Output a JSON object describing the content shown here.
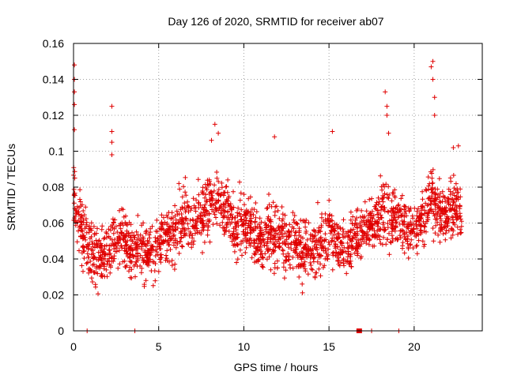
{
  "chart_data": {
    "type": "scatter",
    "title": "Day 126 of 2020, SRMTID for receiver ab07",
    "xlabel": "GPS time / hours",
    "ylabel": "SRMTID / TECUs",
    "xlim": [
      0,
      24
    ],
    "ylim": [
      0,
      0.16
    ],
    "xticks": [
      0,
      5,
      10,
      15,
      20
    ],
    "xtick_labels": [
      "0",
      "5",
      "10",
      "15",
      "20"
    ],
    "yticks": [
      0,
      0.02,
      0.04,
      0.06,
      0.08,
      0.1,
      0.12,
      0.14,
      0.16
    ],
    "ytick_labels": [
      "0",
      "0.02",
      "0.04",
      "0.06",
      "0.08",
      "0.1",
      "0.12",
      "0.14",
      "0.16"
    ],
    "grid": true,
    "marker": "plus",
    "color": "#e00000",
    "series": [
      {
        "name": "SRMTID",
        "trend": [
          [
            0.0,
            0.075
          ],
          [
            0.5,
            0.055
          ],
          [
            1.0,
            0.045
          ],
          [
            1.5,
            0.04
          ],
          [
            2.0,
            0.045
          ],
          [
            2.5,
            0.05
          ],
          [
            3.0,
            0.05
          ],
          [
            3.5,
            0.045
          ],
          [
            4.0,
            0.045
          ],
          [
            4.5,
            0.045
          ],
          [
            5.0,
            0.05
          ],
          [
            5.5,
            0.055
          ],
          [
            6.0,
            0.055
          ],
          [
            6.5,
            0.06
          ],
          [
            7.0,
            0.06
          ],
          [
            7.5,
            0.065
          ],
          [
            8.0,
            0.07
          ],
          [
            8.5,
            0.075
          ],
          [
            9.0,
            0.065
          ],
          [
            9.5,
            0.055
          ],
          [
            10.0,
            0.06
          ],
          [
            10.5,
            0.055
          ],
          [
            11.0,
            0.05
          ],
          [
            11.5,
            0.055
          ],
          [
            12.0,
            0.05
          ],
          [
            12.5,
            0.05
          ],
          [
            13.0,
            0.05
          ],
          [
            13.5,
            0.045
          ],
          [
            14.0,
            0.045
          ],
          [
            14.5,
            0.05
          ],
          [
            15.0,
            0.055
          ],
          [
            15.5,
            0.05
          ],
          [
            16.0,
            0.045
          ],
          [
            16.5,
            0.05
          ],
          [
            17.0,
            0.055
          ],
          [
            17.5,
            0.06
          ],
          [
            18.0,
            0.065
          ],
          [
            18.5,
            0.065
          ],
          [
            19.0,
            0.06
          ],
          [
            19.5,
            0.06
          ],
          [
            20.0,
            0.055
          ],
          [
            20.5,
            0.065
          ],
          [
            21.0,
            0.075
          ],
          [
            21.5,
            0.065
          ],
          [
            22.0,
            0.065
          ],
          [
            22.5,
            0.07
          ],
          [
            22.8,
            0.06
          ]
        ],
        "spikes": [
          [
            0.05,
            0.148
          ],
          [
            0.05,
            0.14
          ],
          [
            0.05,
            0.133
          ],
          [
            0.05,
            0.126
          ],
          [
            0.05,
            0.112
          ],
          [
            2.25,
            0.125
          ],
          [
            2.25,
            0.111
          ],
          [
            2.25,
            0.105
          ],
          [
            2.25,
            0.098
          ],
          [
            8.3,
            0.115
          ],
          [
            8.5,
            0.11
          ],
          [
            8.1,
            0.106
          ],
          [
            11.8,
            0.108
          ],
          [
            15.2,
            0.111
          ],
          [
            18.3,
            0.133
          ],
          [
            18.4,
            0.125
          ],
          [
            18.4,
            0.12
          ],
          [
            18.5,
            0.11
          ],
          [
            21.0,
            0.147
          ],
          [
            21.1,
            0.15
          ],
          [
            21.1,
            0.14
          ],
          [
            21.2,
            0.13
          ],
          [
            21.2,
            0.12
          ],
          [
            22.3,
            0.102
          ],
          [
            22.6,
            0.103
          ]
        ],
        "zeros": [
          0.8,
          3.6,
          16.8,
          17.5,
          19.1
        ]
      }
    ]
  }
}
